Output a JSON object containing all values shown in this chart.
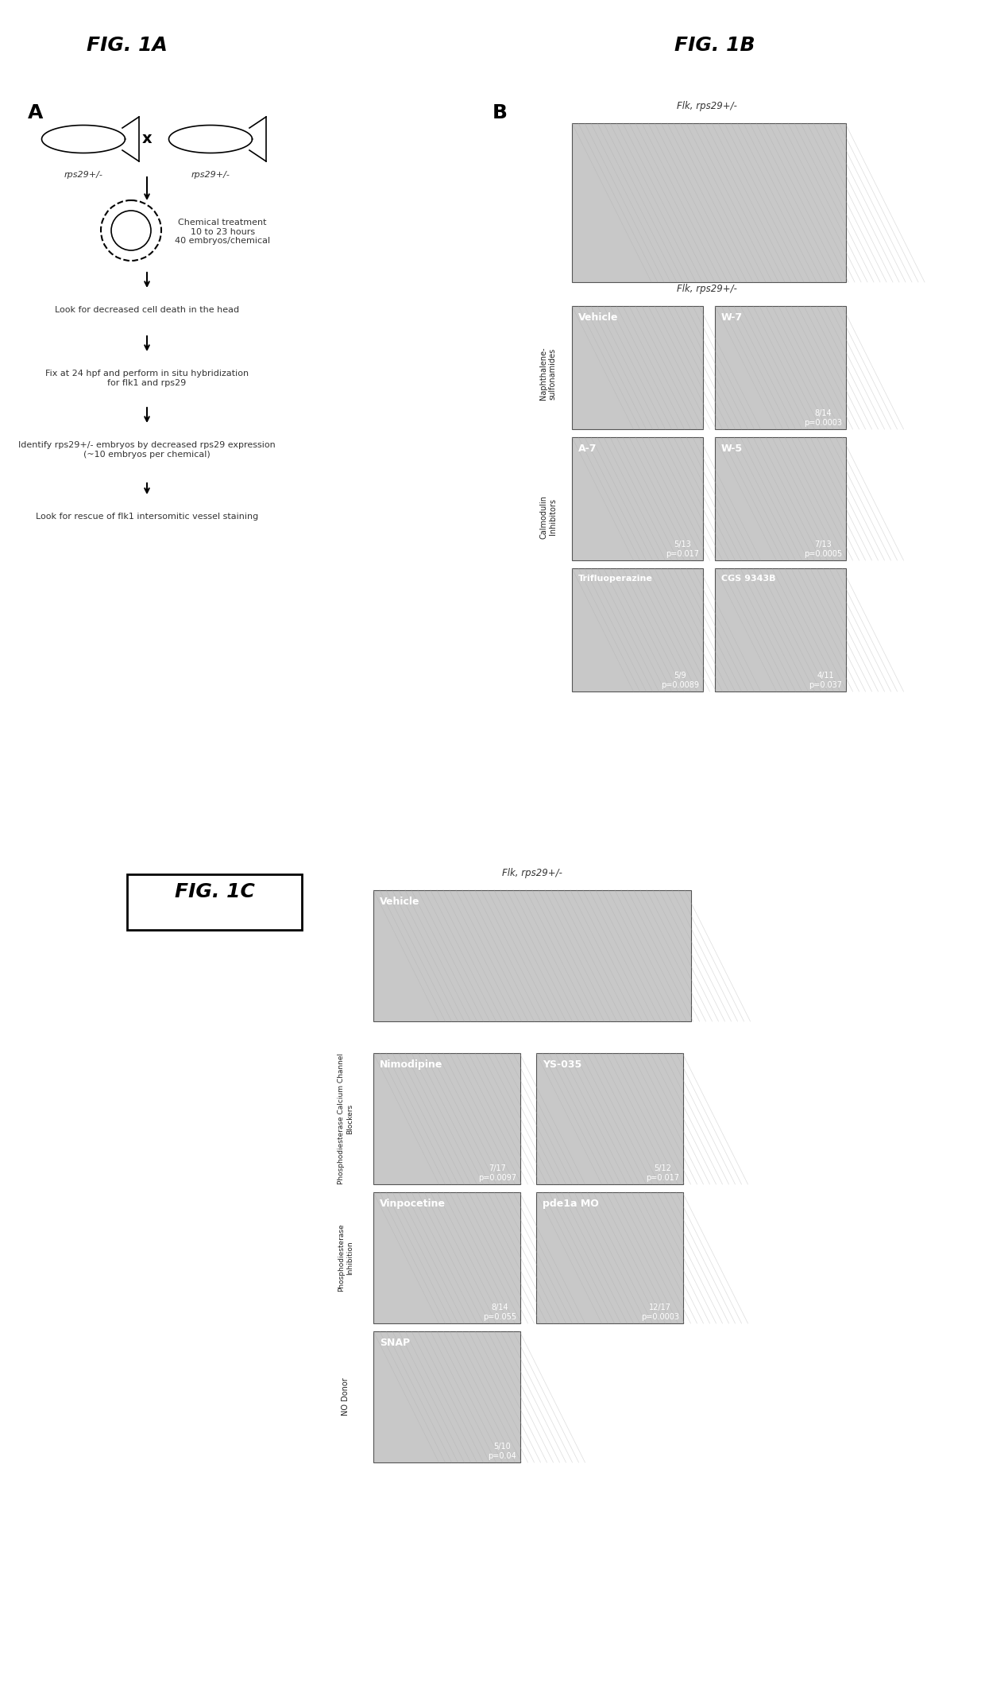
{
  "fig1a_title": "FIG. 1A",
  "fig1b_title": "FIG. 1B",
  "fig1c_title": "FIG. 1C",
  "background_color": "#ffffff",
  "fig_width": 12.4,
  "fig_height": 21.2,
  "panel_A_label": "A",
  "panel_B_label": "B",
  "panel_A_fish_label1": "rps29+/-",
  "panel_A_fish_label2": "rps29+/-",
  "panel_A_steps": [
    "Chemical treatment\n10 to 23 hours\n40 embryos/chemical",
    "Look for decreased cell death in the head",
    "Fix at 24 hpf and perform in situ hybridization\nfor flk1 and rps29",
    "Identify rps29+/- embryos by decreased rps29 expression\n(~10 embryos per chemical)",
    "Look for rescue of flk1 intersomitic vessel staining"
  ],
  "fig1B_top_label": "Flk, rps29+/-",
  "fig1B_row2_label": "Flk, rps29+/-",
  "fig1B_vehicle": "Vehicle",
  "fig1B_W7": "W-7",
  "fig1B_A7": "A-7",
  "fig1B_W5": "W-5",
  "fig1B_trifluop": "Trifluoperazine",
  "fig1B_CGS": "CGS 9343B",
  "fig1B_stat1": "8/14\np=0.0003",
  "fig1B_stat2": "5/13\np=0.017",
  "fig1B_stat3": "7/13\np=0.0005",
  "fig1B_stat4": "5/9\np=0.0089",
  "fig1B_stat5": "4/11\np=0.037",
  "fig1B_Naphthalene": "Naphthalene-\nsulfonamides",
  "fig1B_Calmodulin": "Calmodulin\nInhibitors",
  "fig1C_flk_label": "Flk, rps29+/-",
  "fig1C_vehicle": "Vehicle",
  "fig1C_nimodipine": "Nimodipine",
  "fig1C_YS035": "YS-035",
  "fig1C_vinpocetine": "Vinpocetine",
  "fig1C_pde1a": "pde1a MO",
  "fig1C_SNAP": "SNAP",
  "fig1C_stat1": "7/17\np=0.0097",
  "fig1C_stat2": "5/12\np=0.017",
  "fig1C_stat3": "8/14\np=0.055",
  "fig1C_stat4": "12/17\np=0.0003",
  "fig1C_stat5": "5/10\np=0.04",
  "fig1C_PhosphoCa": "Phosphodiesterase Calcium Channel\nBlockers",
  "fig1C_PhosphoInh": "Phosphodiesterase\nInhibition",
  "fig1C_NOdonor": "NO Donor",
  "img_color": "#c0c0c0",
  "img_border_color": "#666666",
  "text_color": "#000000"
}
